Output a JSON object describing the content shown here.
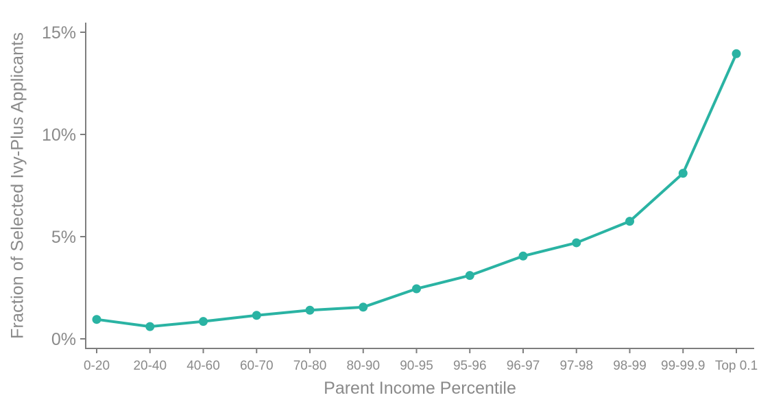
{
  "chart_data": {
    "type": "line",
    "title": "",
    "xlabel": "Parent Income Percentile",
    "ylabel": "Fraction of Selected Ivy-Plus Applicants",
    "categories": [
      "0-20",
      "20-40",
      "40-60",
      "60-70",
      "70-80",
      "80-90",
      "90-95",
      "95-96",
      "96-97",
      "97-98",
      "98-99",
      "99-99.9",
      "Top 0.1"
    ],
    "values": [
      0.95,
      0.6,
      0.85,
      1.15,
      1.4,
      1.55,
      2.45,
      3.1,
      4.05,
      4.7,
      5.75,
      8.1,
      13.95
    ],
    "yticks": [
      0,
      5,
      10,
      15
    ],
    "ytick_suffix": "%",
    "ylim": [
      0,
      15.5
    ],
    "grid": false,
    "legend_position": "none",
    "marker": "circle",
    "colors": {
      "line": "#2ab3a3",
      "marker": "#2ab3a3",
      "axis": "#7d7d7d",
      "tick_text": "#8a8a8a"
    }
  }
}
